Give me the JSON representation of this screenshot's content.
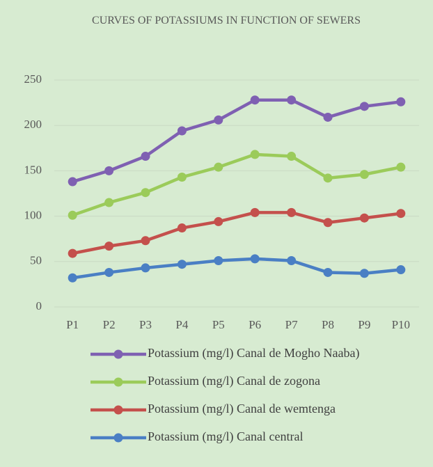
{
  "chart_data": {
    "type": "line",
    "title": "CURVES OF POTASSIUMS IN FUNCTION OF SEWERS",
    "categories": [
      "P1",
      "P2",
      "P3",
      "P4",
      "P5",
      "P6",
      "P7",
      "P8",
      "P9",
      "P10"
    ],
    "series": [
      {
        "name": "Potassium (mg/l) Canal de Mogho Naaba)",
        "color": "#7f60b2",
        "values": [
          138,
          150,
          166,
          194,
          206,
          228,
          228,
          209,
          221,
          226
        ]
      },
      {
        "name": "Potassium (mg/l) Canal de zogona",
        "color": "#9bcb5a",
        "values": [
          101,
          115,
          126,
          143,
          154,
          168,
          166,
          142,
          146,
          154
        ]
      },
      {
        "name": "Potassium (mg/l) Canal de wemtenga",
        "color": "#c4504c",
        "values": [
          59,
          67,
          73,
          87,
          94,
          104,
          104,
          93,
          98,
          103
        ]
      },
      {
        "name": "Potassium (mg/l) Canal central",
        "color": "#4a7fc4",
        "values": [
          32,
          38,
          43,
          47,
          51,
          53,
          51,
          38,
          37,
          41
        ]
      }
    ],
    "ylim": [
      0,
      250
    ],
    "yticks": [
      0,
      50,
      100,
      150,
      200,
      250
    ],
    "grid": true,
    "legend": "bottom"
  }
}
